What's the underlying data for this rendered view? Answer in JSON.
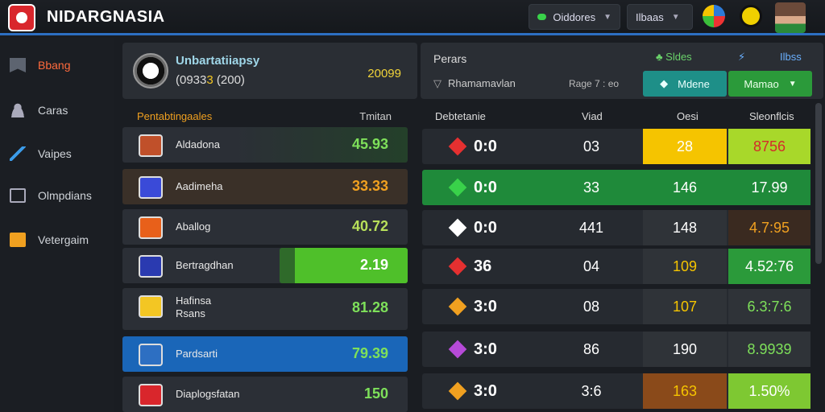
{
  "header": {
    "title": "NIDARGNASIA",
    "dropdown1": "Oiddores",
    "dropdown2": "Ilbaas"
  },
  "sidebar": {
    "items": [
      {
        "label": "Bbang",
        "icon": "flag-icon"
      },
      {
        "label": "Caras",
        "icon": "user-icon"
      },
      {
        "label": "Vaipes",
        "icon": "pulse-icon"
      },
      {
        "label": "Olmpdians",
        "icon": "document-icon"
      },
      {
        "label": "Vetergaim",
        "icon": "wallet-icon"
      }
    ]
  },
  "club": {
    "name": "Unbartatiiapsy",
    "sub_prefix": "(0933",
    "sub_highlight": "3",
    "sub_suffix": "(200)",
    "score": "20099"
  },
  "left_table": {
    "col1": "Pentabtingaales",
    "col2": "Tmitan",
    "rows": [
      {
        "name": "Aldadona",
        "value": "45.93",
        "value_color": "#7ee05a",
        "crest": "#c0502a"
      },
      {
        "name": "Aadimeha",
        "value": "33.33",
        "value_color": "#f0a020",
        "crest": "#3a4ad8"
      },
      {
        "name": "Aballog",
        "value": "40.72",
        "value_color": "#b8e05a",
        "crest": "#e8601a"
      },
      {
        "name": "Bertragdhan",
        "value": "2.19",
        "value_color": "#ffffff",
        "crest": "#2a3ab0",
        "fill_fraction": 0.45
      },
      {
        "name": "Hafinsa",
        "name2": "Rsans",
        "value": "81.28",
        "value_color": "#7ee05a",
        "crest": "#f3c623"
      },
      {
        "name": "Pardsarti",
        "value": "79.39",
        "value_color": "#7ee05a",
        "crest": "#2d6fc2",
        "selected": true
      },
      {
        "name": "Diaplogsfatan",
        "value": "150",
        "value_color": "#7ee05a",
        "crest": "#d9262c"
      }
    ]
  },
  "right_panel": {
    "title": "Perars",
    "sub": "Rhamamavlan",
    "mid": "Rage 7 : eo",
    "slides": "Sldes",
    "indicator": "Ilbss",
    "btn1": "Mdene",
    "btn2": "Mamao",
    "columns": [
      "Debtetanie",
      "Viad",
      "Oesi",
      "Sleonflcis"
    ],
    "rows": [
      {
        "score": "0:0",
        "mid": "03",
        "c": "28",
        "d": "8756",
        "gem": "#e53030",
        "c_bg": "#f5c400",
        "c_color": "#ffffff",
        "d_bg": "#a8d82a",
        "d_color": "#d42a2a"
      },
      {
        "score": "0:0",
        "mid": "33",
        "c": "146",
        "d": "17.99",
        "gem": "#39d24a",
        "row_bg": "#1f8a3a",
        "c_bg": "#1f8a3a",
        "c_color": "#ffffff",
        "d_bg": "#1f8a3a",
        "d_color": "#ffffff"
      },
      {
        "score": "0:0",
        "mid": "441",
        "c": "148",
        "d": "4.7:95",
        "gem": "#ffffff",
        "c_bg": "#2f3338",
        "c_color": "#ffffff",
        "d_bg": "#3a2a20",
        "d_color": "#f0a020"
      },
      {
        "score": "36",
        "mid": "04",
        "c": "109",
        "d": "4.52:76",
        "gem": "#e53030",
        "c_bg": "#2f3338",
        "c_color": "#f5c400",
        "d_bg": "#2b9a3a",
        "d_color": "#ffffff"
      },
      {
        "score": "3:0",
        "mid": "08",
        "c": "107",
        "d": "6.3:7:6",
        "gem": "#f0a020",
        "c_bg": "#2f3338",
        "c_color": "#f5c400",
        "d_bg": "#2f3338",
        "d_color": "#7ee05a"
      },
      {
        "score": "3:0",
        "mid": "86",
        "c": "190",
        "d": "8.9939",
        "gem": "#b64ad8",
        "c_bg": "#2f3338",
        "c_color": "#ffffff",
        "d_bg": "#2f3338",
        "d_color": "#7ee05a"
      },
      {
        "score": "3:0",
        "mid": "3:6",
        "c": "163",
        "d": "1.50%",
        "gem": "#f0a020",
        "c_bg": "#8a4a1a",
        "c_color": "#f5c400",
        "d_bg": "#7ec832",
        "d_color": "#ffffff"
      }
    ]
  }
}
